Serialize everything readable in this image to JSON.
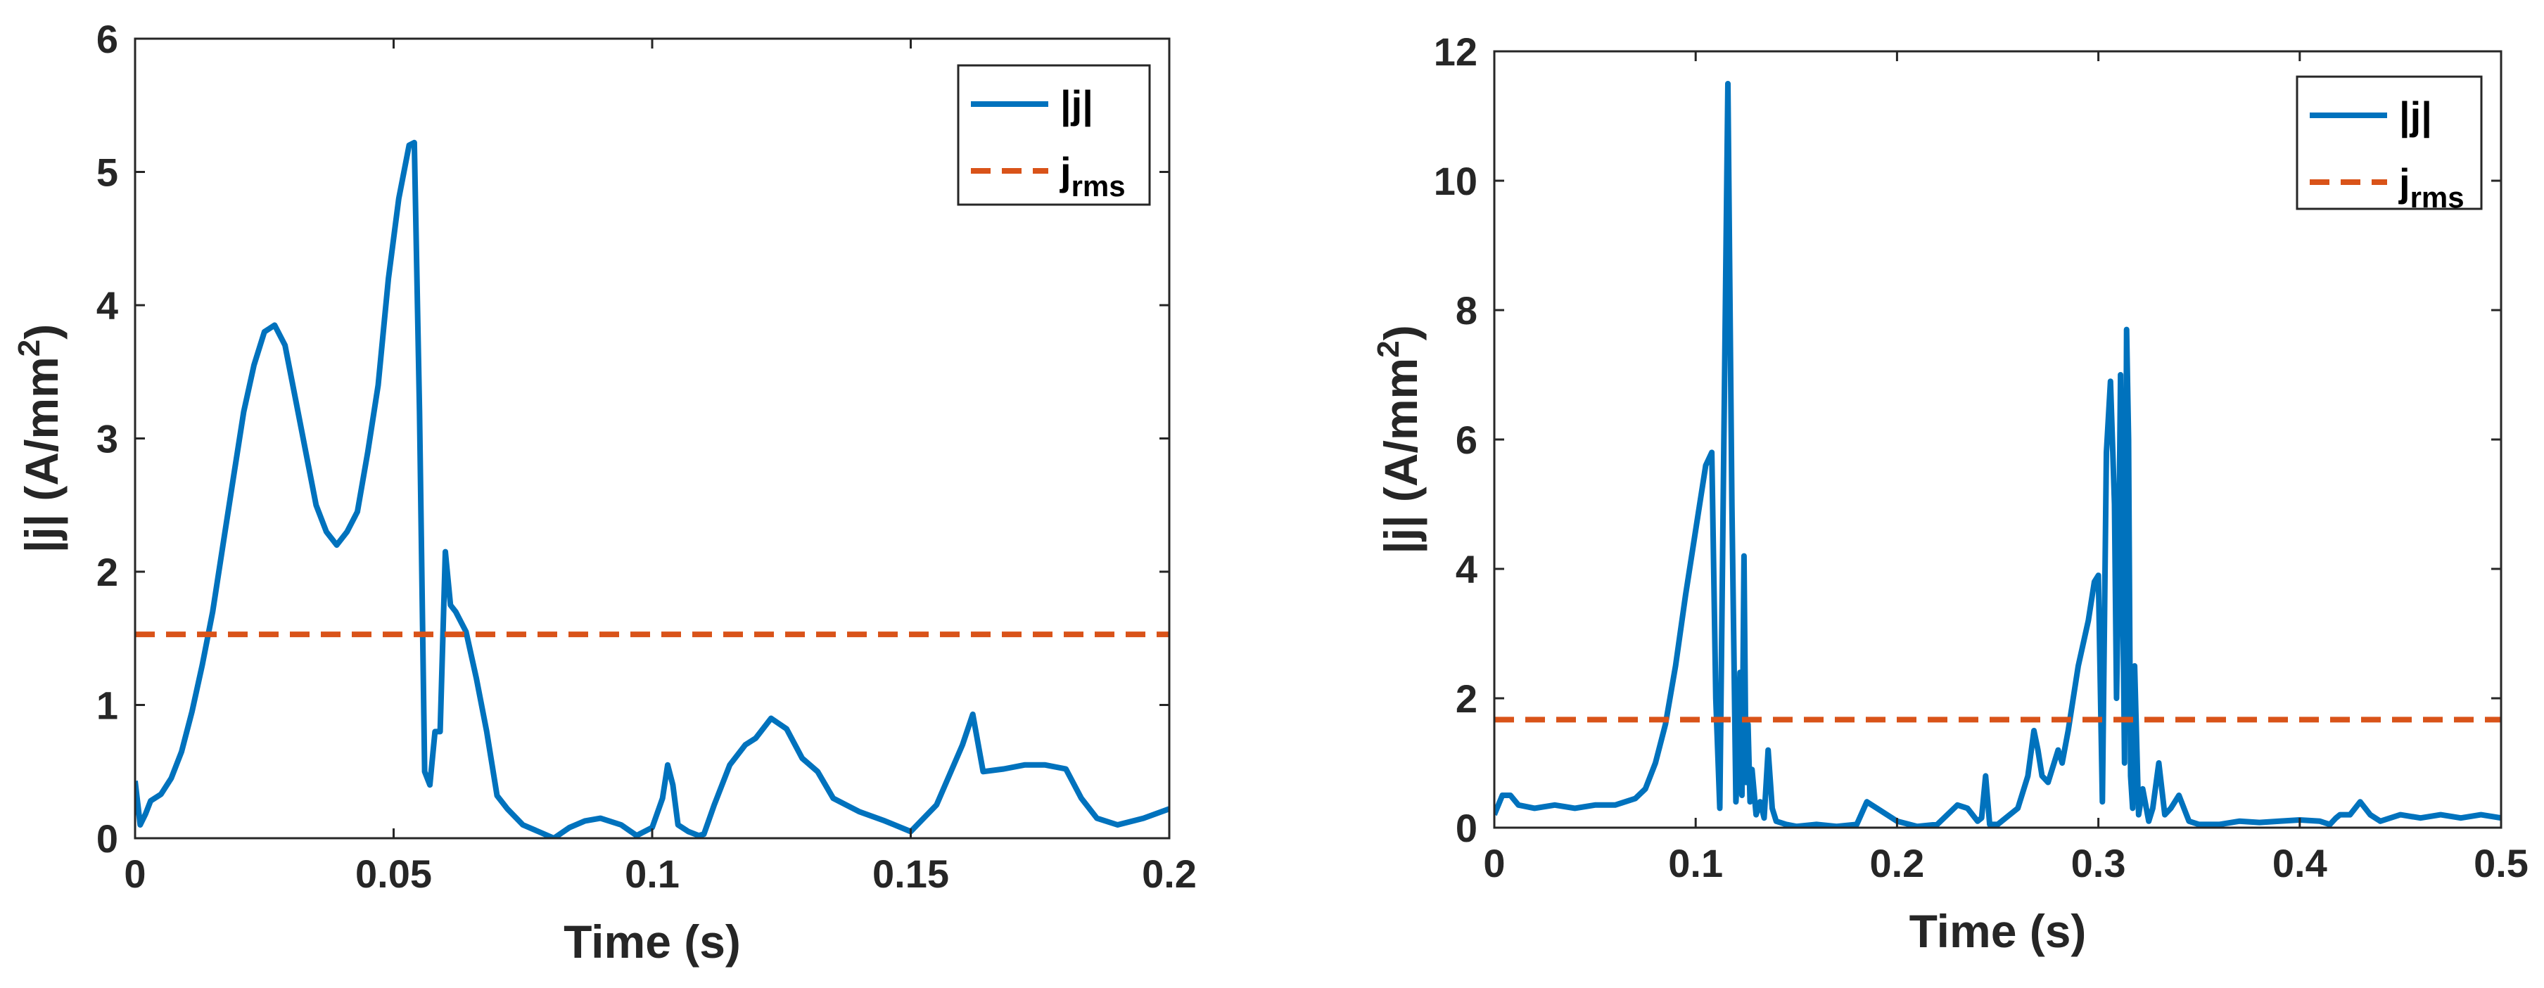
{
  "chart_data": [
    {
      "type": "line",
      "xlabel": "Time (s)",
      "ylabel": "|j| (A/mm",
      "ylabel_sup": "2",
      "ylabel_close": ")",
      "xlim": [
        0,
        0.2
      ],
      "ylim": [
        0,
        6
      ],
      "xticks": [
        0,
        0.05,
        0.1,
        0.15,
        0.2
      ],
      "xtick_labels": [
        "0",
        "0.05",
        "0.1",
        "0.15",
        "0.2"
      ],
      "yticks": [
        0,
        1,
        2,
        3,
        4,
        5,
        6
      ],
      "ytick_labels": [
        "0",
        "1",
        "2",
        "3",
        "4",
        "5",
        "6"
      ],
      "legend": {
        "position": "top-right",
        "entries": [
          {
            "label": "|j|",
            "sub": "",
            "style": "solid"
          },
          {
            "label": "j",
            "sub": "rms",
            "style": "dashed"
          }
        ]
      },
      "series": [
        {
          "name": "|j|",
          "color": "#0072BD",
          "style": "solid",
          "x": [
            0,
            0.001,
            0.002,
            0.003,
            0.005,
            0.007,
            0.009,
            0.011,
            0.013,
            0.015,
            0.017,
            0.019,
            0.021,
            0.023,
            0.025,
            0.027,
            0.029,
            0.031,
            0.033,
            0.035,
            0.037,
            0.039,
            0.041,
            0.043,
            0.045,
            0.047,
            0.049,
            0.051,
            0.053,
            0.054,
            0.055,
            0.056,
            0.057,
            0.058,
            0.059,
            0.06,
            0.061,
            0.062,
            0.064,
            0.066,
            0.068,
            0.07,
            0.072,
            0.075,
            0.078,
            0.081,
            0.084,
            0.087,
            0.09,
            0.094,
            0.097,
            0.1,
            0.102,
            0.103,
            0.104,
            0.105,
            0.107,
            0.109,
            0.11,
            0.112,
            0.115,
            0.118,
            0.12,
            0.123,
            0.126,
            0.129,
            0.132,
            0.135,
            0.14,
            0.145,
            0.15,
            0.155,
            0.16,
            0.162,
            0.164,
            0.168,
            0.172,
            0.176,
            0.18,
            0.183,
            0.186,
            0.19,
            0.195,
            0.2
          ],
          "y": [
            0.43,
            0.1,
            0.18,
            0.28,
            0.33,
            0.45,
            0.65,
            0.95,
            1.3,
            1.7,
            2.2,
            2.7,
            3.2,
            3.55,
            3.8,
            3.85,
            3.7,
            3.3,
            2.9,
            2.5,
            2.3,
            2.2,
            2.3,
            2.45,
            2.9,
            3.4,
            4.2,
            4.8,
            5.2,
            5.22,
            3.2,
            0.5,
            0.4,
            0.8,
            0.8,
            2.15,
            1.75,
            1.7,
            1.55,
            1.2,
            0.8,
            0.32,
            0.22,
            0.1,
            0.05,
            0.0,
            0.08,
            0.13,
            0.15,
            0.1,
            0.02,
            0.08,
            0.3,
            0.55,
            0.4,
            0.1,
            0.05,
            0.02,
            0.03,
            0.25,
            0.55,
            0.7,
            0.75,
            0.9,
            0.82,
            0.6,
            0.5,
            0.3,
            0.2,
            0.13,
            0.05,
            0.25,
            0.7,
            0.93,
            0.5,
            0.52,
            0.55,
            0.55,
            0.52,
            0.3,
            0.15,
            0.1,
            0.15,
            0.22
          ]
        },
        {
          "name": "j_rms",
          "color": "#D95319",
          "style": "dashed",
          "x": [
            0,
            0.2
          ],
          "y": [
            1.53,
            1.53
          ]
        }
      ]
    },
    {
      "type": "line",
      "xlabel": "Time (s)",
      "ylabel": "|j| (A/mm",
      "ylabel_sup": "2",
      "ylabel_close": ")",
      "xlim": [
        0,
        0.5
      ],
      "ylim": [
        0,
        12
      ],
      "xticks": [
        0,
        0.1,
        0.2,
        0.3,
        0.4,
        0.5
      ],
      "xtick_labels": [
        "0",
        "0.1",
        "0.2",
        "0.3",
        "0.4",
        "0.5"
      ],
      "yticks": [
        0,
        2,
        4,
        6,
        8,
        10,
        12
      ],
      "ytick_labels": [
        "0",
        "2",
        "4",
        "6",
        "8",
        "10",
        "12"
      ],
      "legend": {
        "position": "top-right",
        "entries": [
          {
            "label": "|j|",
            "sub": "",
            "style": "solid"
          },
          {
            "label": "j",
            "sub": "rms",
            "style": "dashed"
          }
        ]
      },
      "series": [
        {
          "name": "|j|",
          "color": "#0072BD",
          "style": "solid",
          "x": [
            0,
            0.004,
            0.008,
            0.012,
            0.02,
            0.03,
            0.04,
            0.05,
            0.06,
            0.07,
            0.075,
            0.08,
            0.085,
            0.09,
            0.095,
            0.1,
            0.105,
            0.108,
            0.11,
            0.112,
            0.114,
            0.116,
            0.118,
            0.12,
            0.121,
            0.122,
            0.123,
            0.124,
            0.125,
            0.126,
            0.127,
            0.128,
            0.13,
            0.132,
            0.134,
            0.136,
            0.138,
            0.14,
            0.145,
            0.15,
            0.16,
            0.17,
            0.18,
            0.185,
            0.19,
            0.2,
            0.21,
            0.22,
            0.23,
            0.235,
            0.24,
            0.242,
            0.244,
            0.246,
            0.25,
            0.26,
            0.265,
            0.268,
            0.27,
            0.272,
            0.275,
            0.28,
            0.282,
            0.285,
            0.29,
            0.295,
            0.298,
            0.3,
            0.302,
            0.304,
            0.306,
            0.308,
            0.309,
            0.31,
            0.311,
            0.312,
            0.313,
            0.314,
            0.315,
            0.316,
            0.317,
            0.318,
            0.32,
            0.322,
            0.325,
            0.327,
            0.33,
            0.333,
            0.336,
            0.34,
            0.345,
            0.35,
            0.36,
            0.37,
            0.38,
            0.39,
            0.4,
            0.41,
            0.415,
            0.418,
            0.42,
            0.425,
            0.43,
            0.435,
            0.44,
            0.45,
            0.46,
            0.47,
            0.48,
            0.49,
            0.5
          ],
          "y": [
            0.2,
            0.5,
            0.5,
            0.35,
            0.3,
            0.35,
            0.3,
            0.35,
            0.35,
            0.45,
            0.6,
            1.0,
            1.6,
            2.5,
            3.6,
            4.6,
            5.6,
            5.8,
            2.0,
            0.3,
            6.0,
            11.5,
            5.0,
            0.4,
            1.0,
            2.4,
            0.5,
            4.2,
            0.7,
            1.6,
            0.4,
            0.9,
            0.2,
            0.4,
            0.15,
            1.2,
            0.3,
            0.1,
            0.05,
            0.02,
            0.05,
            0.02,
            0.05,
            0.4,
            0.3,
            0.1,
            0.02,
            0.05,
            0.35,
            0.3,
            0.1,
            0.15,
            0.8,
            0.05,
            0.05,
            0.3,
            0.8,
            1.5,
            1.2,
            0.8,
            0.7,
            1.2,
            1.0,
            1.5,
            2.5,
            3.2,
            3.8,
            3.9,
            0.4,
            5.8,
            6.9,
            5.0,
            2.0,
            3.8,
            7.0,
            4.0,
            1.0,
            7.7,
            6.0,
            0.8,
            0.3,
            2.5,
            0.2,
            0.6,
            0.1,
            0.3,
            1.0,
            0.2,
            0.3,
            0.5,
            0.1,
            0.05,
            0.05,
            0.1,
            0.08,
            0.1,
            0.12,
            0.1,
            0.05,
            0.15,
            0.2,
            0.2,
            0.4,
            0.2,
            0.1,
            0.2,
            0.15,
            0.2,
            0.15,
            0.2,
            0.15
          ]
        },
        {
          "name": "j_rms",
          "color": "#D95319",
          "style": "dashed",
          "x": [
            0,
            0.5
          ],
          "y": [
            1.67,
            1.67
          ]
        }
      ]
    }
  ]
}
